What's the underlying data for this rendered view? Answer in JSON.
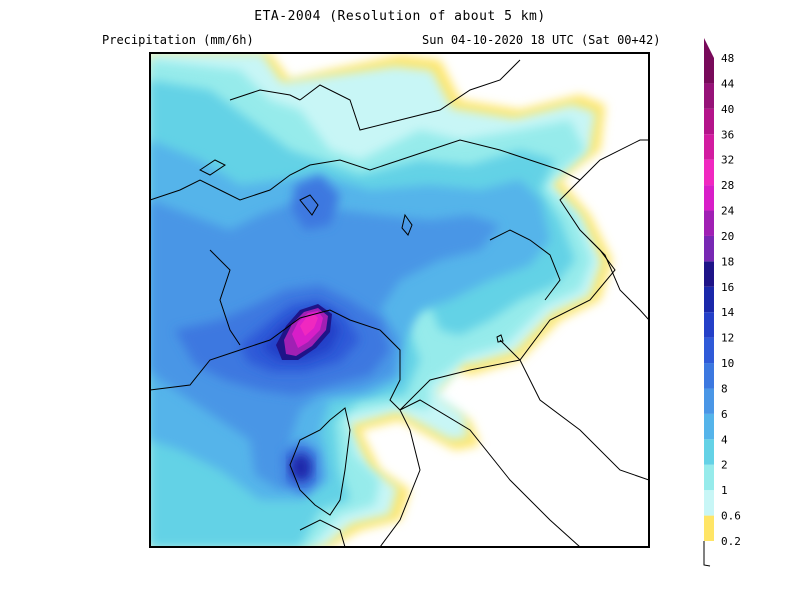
{
  "header": {
    "title": "ETA-2004 (Resolution of about 5 km)",
    "variable": "Precipitation (mm/6h)",
    "valid_time": "Sun 04-10-2020 18 UTC (Sat 00+42)"
  },
  "legend": {
    "levels": [
      "0.2",
      "0.6",
      "1",
      "2",
      "4",
      "6",
      "8",
      "10",
      "12",
      "14",
      "16",
      "18",
      "20",
      "24",
      "28",
      "32",
      "36",
      "40",
      "44",
      "48"
    ],
    "colors": [
      "#ffe566",
      "#c8f6f6",
      "#96ebeb",
      "#64d2e6",
      "#55b4ea",
      "#4a96e6",
      "#3c78e0",
      "#2f5ad8",
      "#2440c8",
      "#1a28aa",
      "#1e1488",
      "#7828b4",
      "#a020b4",
      "#d81ec8",
      "#f028c0",
      "#d21ca0",
      "#b4148a",
      "#961278",
      "#780a5a"
    ]
  },
  "colors": {
    "sea_background": "#ffffff",
    "frame": "#000000",
    "coastline": "#000000"
  }
}
